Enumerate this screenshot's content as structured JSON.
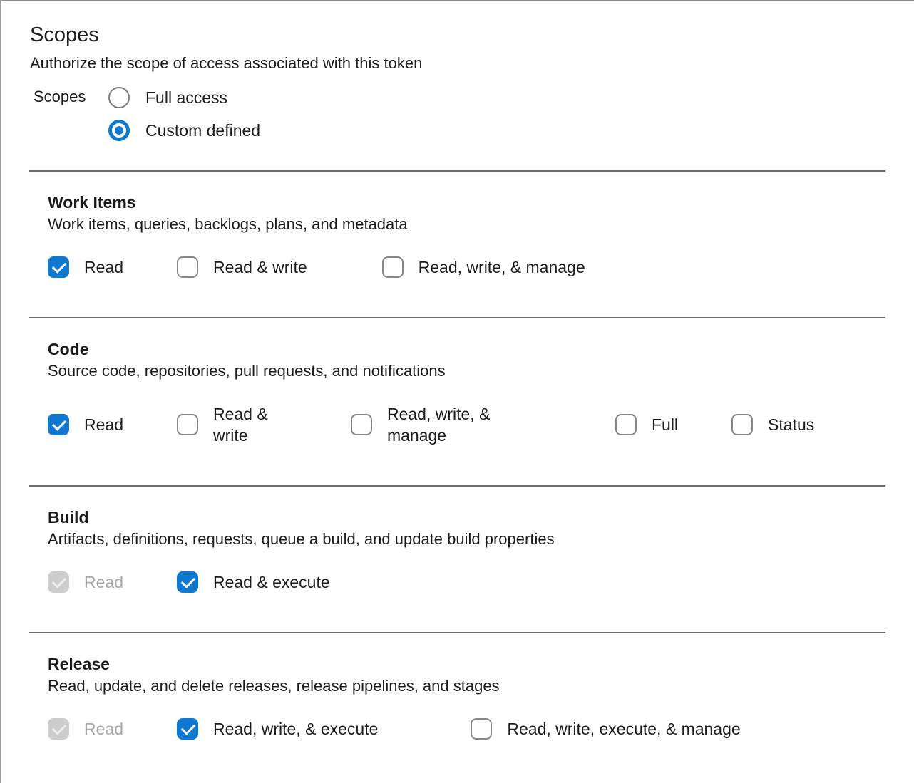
{
  "colors": {
    "accent": "#0f79d2",
    "divider": "#6e6e6e",
    "disabled_fill": "#cdcdcd",
    "disabled_text": "#a8a8a8"
  },
  "icons": {
    "checked_checkbox": "checkmark-icon",
    "selected_radio": "radio-dot-icon"
  },
  "page": {
    "title": "Scopes",
    "subtitle": "Authorize the scope of access associated with this token"
  },
  "radio_group": {
    "label": "Scopes",
    "options": [
      {
        "label": "Full access",
        "selected": false
      },
      {
        "label": "Custom defined",
        "selected": true
      }
    ]
  },
  "sections": [
    {
      "title": "Work Items",
      "description": "Work items, queries, backlogs, plans, and metadata",
      "options": [
        {
          "label": "Read",
          "checked": true,
          "disabled": false
        },
        {
          "label": "Read & write",
          "checked": false,
          "disabled": false
        },
        {
          "label": "Read, write, & manage",
          "checked": false,
          "disabled": false
        }
      ]
    },
    {
      "title": "Code",
      "description": "Source code, repositories, pull requests, and notifications",
      "options": [
        {
          "label": "Read",
          "checked": true,
          "disabled": false
        },
        {
          "label": "Read & write",
          "checked": false,
          "disabled": false
        },
        {
          "label": "Read, write, & manage",
          "checked": false,
          "disabled": false
        },
        {
          "label": "Full",
          "checked": false,
          "disabled": false
        },
        {
          "label": "Status",
          "checked": false,
          "disabled": false
        }
      ]
    },
    {
      "title": "Build",
      "description": "Artifacts, definitions, requests, queue a build, and update build properties",
      "options": [
        {
          "label": "Read",
          "checked": true,
          "disabled": true
        },
        {
          "label": "Read & execute",
          "checked": true,
          "disabled": false
        }
      ]
    },
    {
      "title": "Release",
      "description": "Read, update, and delete releases, release pipelines, and stages",
      "options": [
        {
          "label": "Read",
          "checked": true,
          "disabled": true
        },
        {
          "label": "Read, write, & execute",
          "checked": true,
          "disabled": false
        },
        {
          "label": "Read, write, execute, & manage",
          "checked": false,
          "disabled": false
        }
      ]
    }
  ]
}
